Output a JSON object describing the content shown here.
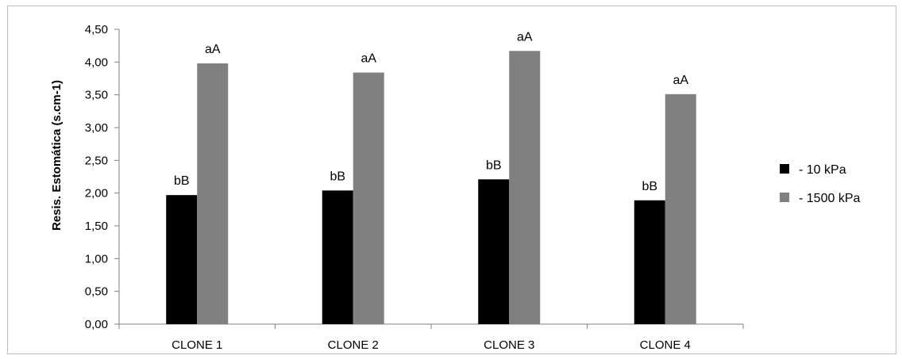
{
  "chart_data": {
    "type": "bar",
    "categories": [
      "CLONE 1",
      "CLONE 2",
      "CLONE 3",
      "CLONE 4"
    ],
    "series": [
      {
        "name": "- 10 kPa",
        "color": "#000000",
        "values": [
          1.97,
          2.04,
          2.21,
          1.89
        ],
        "labels": [
          "bB",
          "bB",
          "bB",
          "bB"
        ]
      },
      {
        "name": "- 1500 kPa",
        "color": "#808080",
        "values": [
          3.98,
          3.84,
          4.17,
          3.51
        ],
        "labels": [
          "aA",
          "aA",
          "aA",
          "aA"
        ]
      }
    ],
    "ylabel": "Resis. Estomática (s.cm-1)",
    "xlabel": "",
    "ylim": [
      0,
      4.5
    ],
    "yticks": [
      "0,00",
      "0,50",
      "1,00",
      "1,50",
      "2,00",
      "2,50",
      "3,00",
      "3,50",
      "4,00",
      "4,50"
    ],
    "grid": false,
    "legend": "right"
  }
}
